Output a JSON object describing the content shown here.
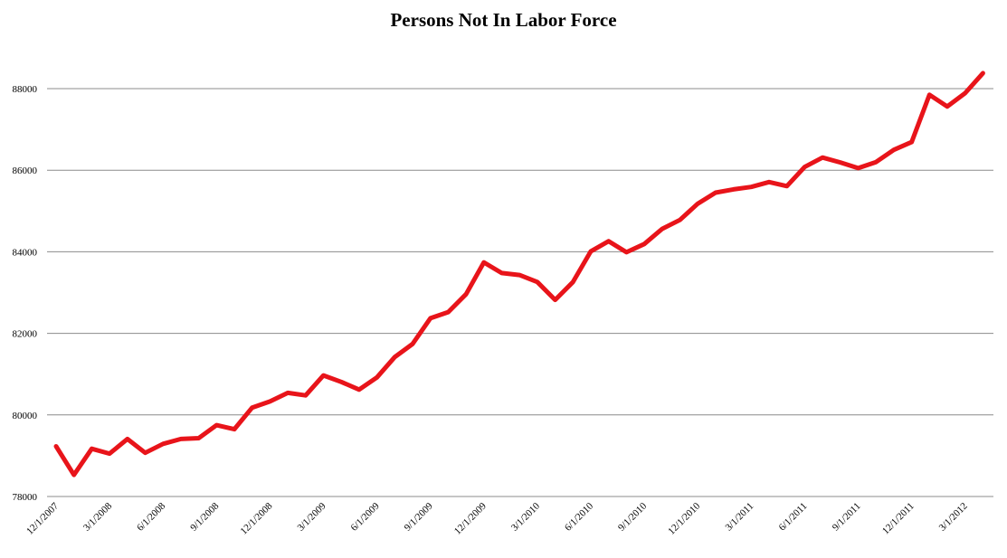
{
  "chart_data": {
    "type": "line",
    "title": "Persons Not In Labor Force",
    "xlabel": "",
    "ylabel": "",
    "ylim": [
      78000,
      89000
    ],
    "y_ticks": [
      78000,
      80000,
      82000,
      84000,
      86000,
      88000
    ],
    "x_tick_labels": [
      "12/1/2007",
      "3/1/2008",
      "6/1/2008",
      "9/1/2008",
      "12/1/2008",
      "3/1/2009",
      "6/1/2009",
      "9/1/2009",
      "12/1/2009",
      "3/1/2010",
      "6/1/2010",
      "9/1/2010",
      "12/1/2010",
      "3/1/2011",
      "6/1/2011",
      "9/1/2011",
      "12/1/2011",
      "3/1/2012"
    ],
    "grid": true,
    "line_color": "#e8141a",
    "series": [
      {
        "values": [
          79230,
          78530,
          79170,
          79050,
          79410,
          79070,
          79290,
          79410,
          79430,
          79750,
          79650,
          80180,
          80330,
          80540,
          80480,
          80970,
          80810,
          80620,
          80920,
          81420,
          81740,
          82370,
          82520,
          82960,
          83740,
          83480,
          83430,
          83260,
          82820,
          83260,
          84010,
          84260,
          83990,
          84190,
          84560,
          84780,
          85180,
          85450,
          85530,
          85590,
          85710,
          85610,
          86080,
          86310,
          86190,
          86050,
          86200,
          86500,
          86690,
          87850,
          87560,
          87890,
          88380
        ]
      }
    ]
  }
}
